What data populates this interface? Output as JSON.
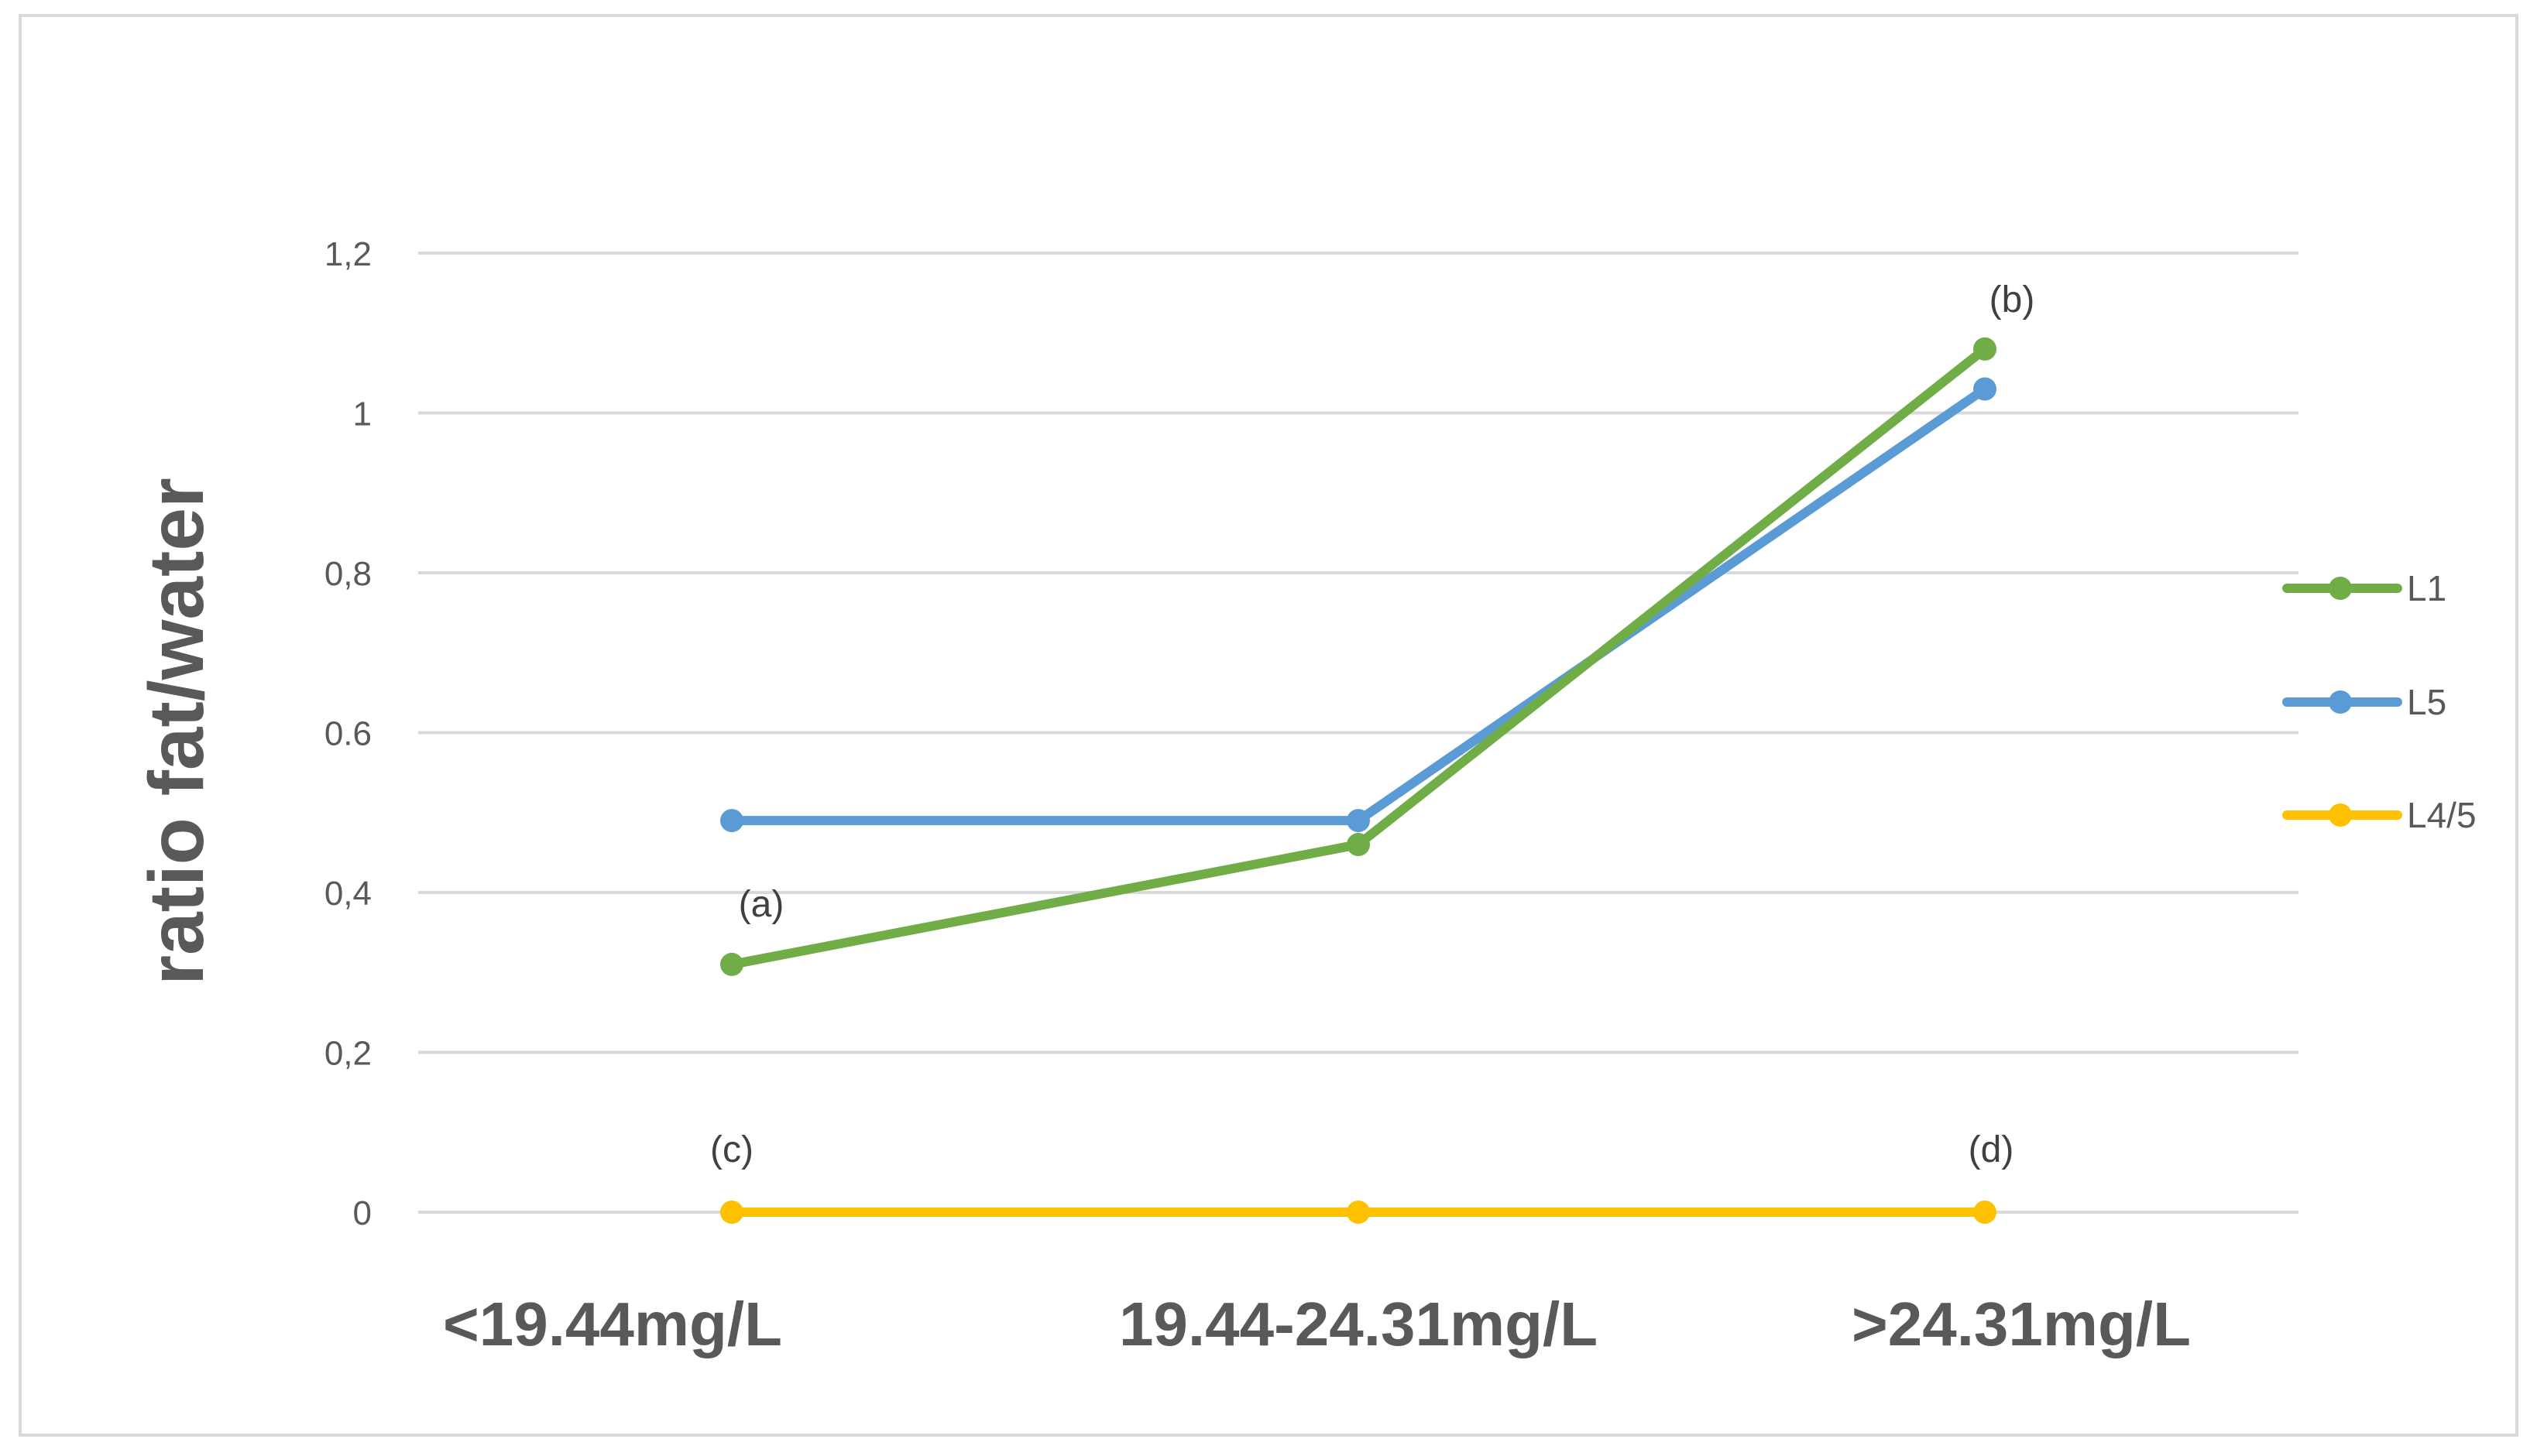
{
  "chart_data": {
    "type": "line",
    "title": "",
    "xlabel": "",
    "ylabel": "ratio fat/water",
    "categories": [
      "<19.44mg/L",
      "19.44-24.31mg/L",
      ">24.31mg/L"
    ],
    "ylim": [
      0,
      1.2
    ],
    "yticks": [
      0,
      0.2,
      0.4,
      0.6,
      0.8,
      1,
      1.2
    ],
    "ytick_labels": [
      "0",
      "0,2",
      "0,4",
      "0.6",
      "0,8",
      "1",
      "1,2"
    ],
    "grid": true,
    "legend_position": "right",
    "series": [
      {
        "name": "L1",
        "color": "#70ad47",
        "values": [
          0.31,
          0.46,
          1.08
        ]
      },
      {
        "name": "L5",
        "color": "#5b9bd5",
        "values": [
          0.49,
          0.49,
          1.03
        ]
      },
      {
        "name": "L4/5",
        "color": "#ffc000",
        "values": [
          0.0,
          0.0,
          0.0
        ]
      }
    ],
    "annotations": [
      {
        "text": "(a)",
        "category": 0,
        "value": 0.31
      },
      {
        "text": "(b)",
        "category": 2,
        "value": 1.08
      },
      {
        "text": "(c)",
        "category": 0,
        "value": 0.0
      },
      {
        "text": "(d)",
        "category": 2,
        "value": 0.0
      }
    ]
  }
}
